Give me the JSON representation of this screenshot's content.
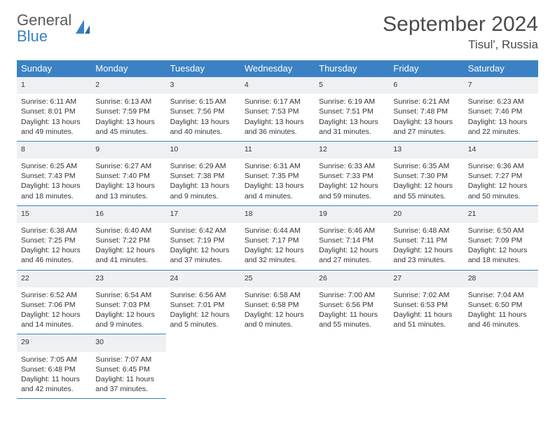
{
  "brand": {
    "word1": "General",
    "word2": "Blue"
  },
  "calendar": {
    "title": "September 2024",
    "location": "Tisul', Russia",
    "headers": [
      "Sunday",
      "Monday",
      "Tuesday",
      "Wednesday",
      "Thursday",
      "Friday",
      "Saturday"
    ],
    "header_bg": "#3b82c4",
    "header_fg": "#ffffff",
    "daynum_bg": "#eef0f2",
    "rule_color": "#3b82c4",
    "weeks": [
      [
        {
          "n": "1",
          "sr": "6:11 AM",
          "ss": "8:01 PM",
          "dl": "13 hours and 49 minutes."
        },
        {
          "n": "2",
          "sr": "6:13 AM",
          "ss": "7:59 PM",
          "dl": "13 hours and 45 minutes."
        },
        {
          "n": "3",
          "sr": "6:15 AM",
          "ss": "7:56 PM",
          "dl": "13 hours and 40 minutes."
        },
        {
          "n": "4",
          "sr": "6:17 AM",
          "ss": "7:53 PM",
          "dl": "13 hours and 36 minutes."
        },
        {
          "n": "5",
          "sr": "6:19 AM",
          "ss": "7:51 PM",
          "dl": "13 hours and 31 minutes."
        },
        {
          "n": "6",
          "sr": "6:21 AM",
          "ss": "7:48 PM",
          "dl": "13 hours and 27 minutes."
        },
        {
          "n": "7",
          "sr": "6:23 AM",
          "ss": "7:46 PM",
          "dl": "13 hours and 22 minutes."
        }
      ],
      [
        {
          "n": "8",
          "sr": "6:25 AM",
          "ss": "7:43 PM",
          "dl": "13 hours and 18 minutes."
        },
        {
          "n": "9",
          "sr": "6:27 AM",
          "ss": "7:40 PM",
          "dl": "13 hours and 13 minutes."
        },
        {
          "n": "10",
          "sr": "6:29 AM",
          "ss": "7:38 PM",
          "dl": "13 hours and 9 minutes."
        },
        {
          "n": "11",
          "sr": "6:31 AM",
          "ss": "7:35 PM",
          "dl": "13 hours and 4 minutes."
        },
        {
          "n": "12",
          "sr": "6:33 AM",
          "ss": "7:33 PM",
          "dl": "12 hours and 59 minutes."
        },
        {
          "n": "13",
          "sr": "6:35 AM",
          "ss": "7:30 PM",
          "dl": "12 hours and 55 minutes."
        },
        {
          "n": "14",
          "sr": "6:36 AM",
          "ss": "7:27 PM",
          "dl": "12 hours and 50 minutes."
        }
      ],
      [
        {
          "n": "15",
          "sr": "6:38 AM",
          "ss": "7:25 PM",
          "dl": "12 hours and 46 minutes."
        },
        {
          "n": "16",
          "sr": "6:40 AM",
          "ss": "7:22 PM",
          "dl": "12 hours and 41 minutes."
        },
        {
          "n": "17",
          "sr": "6:42 AM",
          "ss": "7:19 PM",
          "dl": "12 hours and 37 minutes."
        },
        {
          "n": "18",
          "sr": "6:44 AM",
          "ss": "7:17 PM",
          "dl": "12 hours and 32 minutes."
        },
        {
          "n": "19",
          "sr": "6:46 AM",
          "ss": "7:14 PM",
          "dl": "12 hours and 27 minutes."
        },
        {
          "n": "20",
          "sr": "6:48 AM",
          "ss": "7:11 PM",
          "dl": "12 hours and 23 minutes."
        },
        {
          "n": "21",
          "sr": "6:50 AM",
          "ss": "7:09 PM",
          "dl": "12 hours and 18 minutes."
        }
      ],
      [
        {
          "n": "22",
          "sr": "6:52 AM",
          "ss": "7:06 PM",
          "dl": "12 hours and 14 minutes."
        },
        {
          "n": "23",
          "sr": "6:54 AM",
          "ss": "7:03 PM",
          "dl": "12 hours and 9 minutes."
        },
        {
          "n": "24",
          "sr": "6:56 AM",
          "ss": "7:01 PM",
          "dl": "12 hours and 5 minutes."
        },
        {
          "n": "25",
          "sr": "6:58 AM",
          "ss": "6:58 PM",
          "dl": "12 hours and 0 minutes."
        },
        {
          "n": "26",
          "sr": "7:00 AM",
          "ss": "6:56 PM",
          "dl": "11 hours and 55 minutes."
        },
        {
          "n": "27",
          "sr": "7:02 AM",
          "ss": "6:53 PM",
          "dl": "11 hours and 51 minutes."
        },
        {
          "n": "28",
          "sr": "7:04 AM",
          "ss": "6:50 PM",
          "dl": "11 hours and 46 minutes."
        }
      ],
      [
        {
          "n": "29",
          "sr": "7:05 AM",
          "ss": "6:48 PM",
          "dl": "11 hours and 42 minutes."
        },
        {
          "n": "30",
          "sr": "7:07 AM",
          "ss": "6:45 PM",
          "dl": "11 hours and 37 minutes."
        },
        null,
        null,
        null,
        null,
        null
      ]
    ],
    "labels": {
      "sunrise": "Sunrise:",
      "sunset": "Sunset:",
      "daylight": "Daylight:"
    }
  }
}
